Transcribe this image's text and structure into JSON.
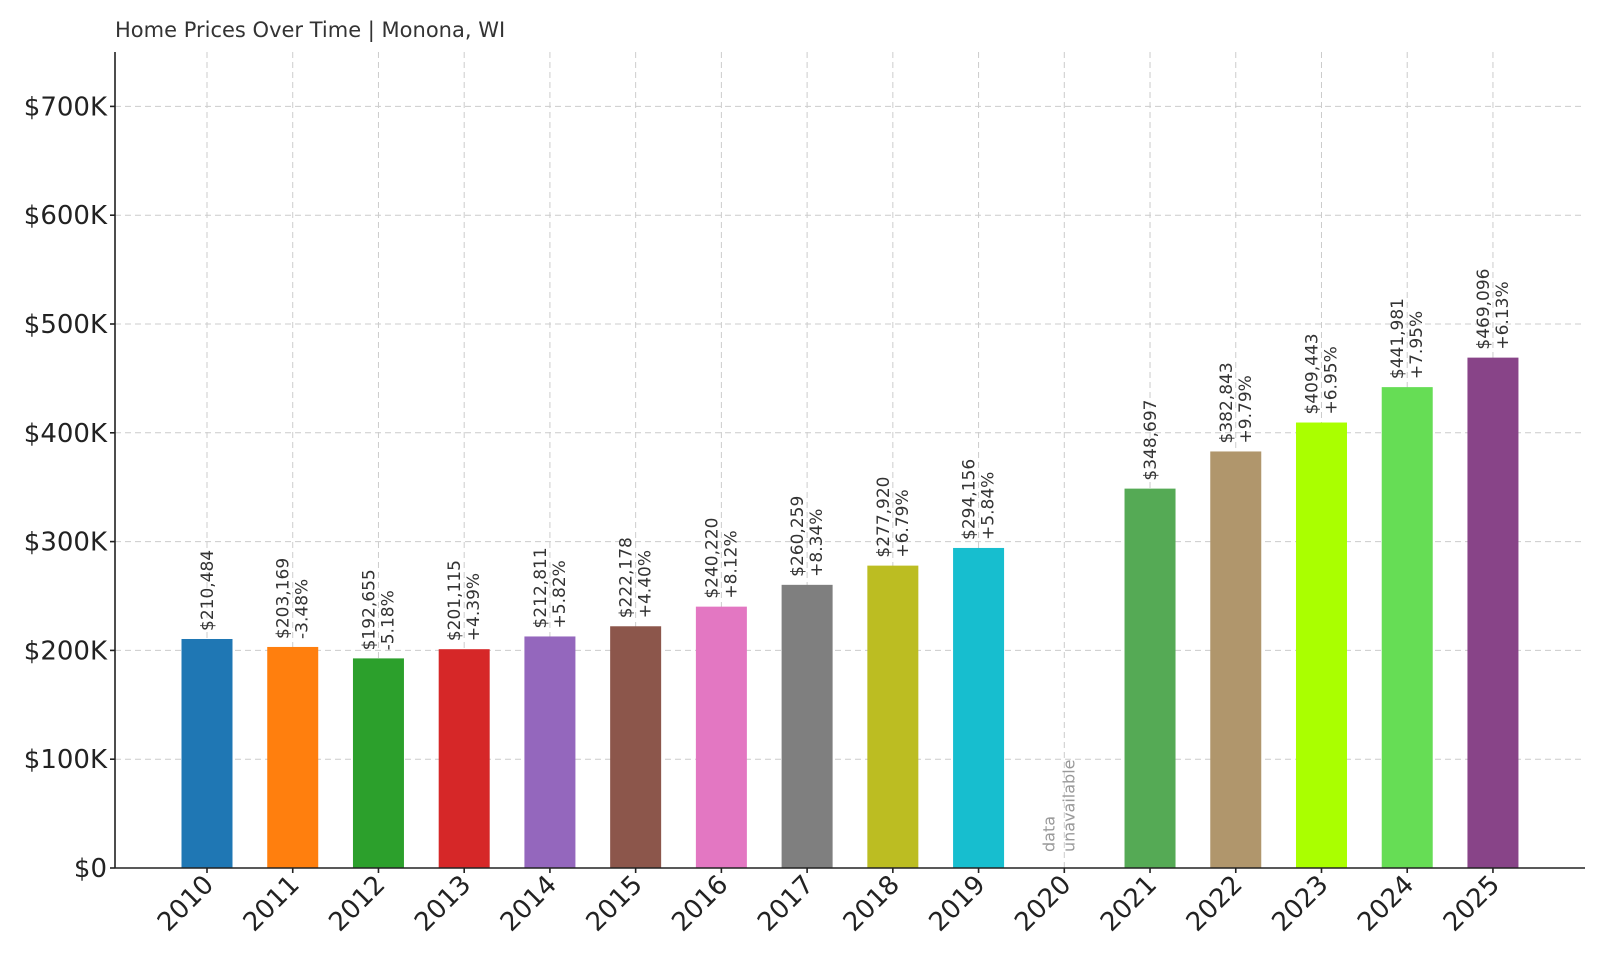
{
  "chart_data": {
    "type": "bar",
    "title": "Home Prices Over Time | Monona, WI",
    "xlabel": "",
    "ylabel": "",
    "ylim": [
      0,
      750000
    ],
    "yticks": [
      0,
      100000,
      200000,
      300000,
      400000,
      500000,
      600000,
      700000
    ],
    "ytick_labels": [
      "$0",
      "$100K",
      "$200K",
      "$300K",
      "$400K",
      "$500K",
      "$600K",
      "$700K"
    ],
    "grid": true,
    "categories": [
      "2010",
      "2011",
      "2012",
      "2013",
      "2014",
      "2015",
      "2016",
      "2017",
      "2018",
      "2019",
      "2020",
      "2021",
      "2022",
      "2023",
      "2024",
      "2025"
    ],
    "values": [
      210484,
      203169,
      192655,
      201115,
      212811,
      222178,
      240220,
      260259,
      277920,
      294156,
      null,
      348697,
      382843,
      409443,
      441981,
      469096
    ],
    "value_labels": [
      "$210,484",
      "$203,169",
      "$192,655",
      "$201,115",
      "$212,811",
      "$222,178",
      "$240,220",
      "$260,259",
      "$277,920",
      "$294,156",
      "",
      "$348,697",
      "$382,843",
      "$409,443",
      "$441,981",
      "$469,096"
    ],
    "change_labels": [
      "",
      "-3.48%",
      "-5.18%",
      "+4.39%",
      "+5.82%",
      "+4.40%",
      "+8.12%",
      "+8.34%",
      "+6.79%",
      "+5.84%",
      "",
      "",
      "+9.79%",
      "+6.95%",
      "+7.95%",
      "+6.13%"
    ],
    "colors": [
      "#1f77b4",
      "#ff7f0e",
      "#2ca02c",
      "#d62728",
      "#9467bd",
      "#8c564b",
      "#e377c2",
      "#7f7f7f",
      "#bcbd22",
      "#17becf",
      "#cccccc",
      "#55aa55",
      "#b0966c",
      "#aaff00",
      "#66dd55",
      "#884488"
    ],
    "missing_label": [
      "data",
      "unavailable"
    ]
  }
}
